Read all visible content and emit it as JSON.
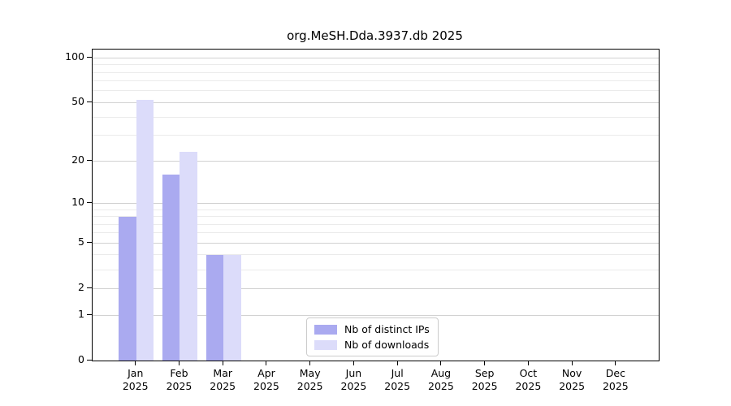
{
  "title": "org.MeSH.Dda.3937.db 2025",
  "colors": {
    "distinct_ips": "#aaaaf0",
    "downloads": "#dcdcfa",
    "grid_major": "#d2d2d2",
    "grid_minor": "#ebebeb",
    "axis": "#000000",
    "legend_border": "#cccccc"
  },
  "legend": {
    "items": [
      {
        "label": "Nb of distinct IPs",
        "color": "#aaaaf0"
      },
      {
        "label": "Nb of downloads",
        "color": "#dcdcfa"
      }
    ]
  },
  "chart_data": {
    "type": "bar",
    "title": "org.MeSH.Dda.3937.db 2025",
    "categories": [
      "Jan",
      "Feb",
      "Mar",
      "Apr",
      "May",
      "Jun",
      "Jul",
      "Aug",
      "Sep",
      "Oct",
      "Nov",
      "Dec"
    ],
    "year_label": "2025",
    "series": [
      {
        "name": "Nb of distinct IPs",
        "color": "#aaaaf0",
        "values": [
          8,
          16,
          4,
          0,
          0,
          0,
          0,
          0,
          0,
          0,
          0,
          0
        ]
      },
      {
        "name": "Nb of downloads",
        "color": "#dcdcfa",
        "values": [
          52,
          23,
          4,
          0,
          0,
          0,
          0,
          0,
          0,
          0,
          0,
          0
        ]
      }
    ],
    "yscale": "log1p",
    "yticks": [
      0,
      1,
      2,
      5,
      10,
      20,
      50,
      100
    ],
    "yticks_minor": [
      3,
      4,
      6,
      7,
      8,
      9,
      30,
      40,
      60,
      70,
      80,
      90
    ],
    "ylim": [
      0,
      113
    ],
    "xlabel": "",
    "ylabel": "",
    "grid": "horizontal",
    "legend_position": "lower center inside"
  }
}
